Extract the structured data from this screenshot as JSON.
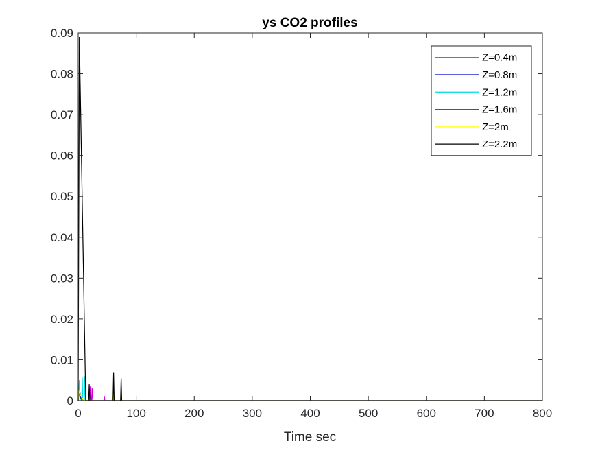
{
  "chart_data": {
    "type": "line",
    "title": "ys CO2 profiles",
    "xlabel": "Time sec",
    "ylabel": "",
    "xlim": [
      0,
      800
    ],
    "ylim": [
      0,
      0.09
    ],
    "xticks": [
      0,
      100,
      200,
      300,
      400,
      500,
      600,
      700,
      800
    ],
    "xtick_labels": [
      "0",
      "100",
      "200",
      "300",
      "400",
      "500",
      "600",
      "700",
      "800"
    ],
    "yticks": [
      0,
      0.01,
      0.02,
      0.03,
      0.04,
      0.05,
      0.06,
      0.07,
      0.08,
      0.09
    ],
    "ytick_labels": [
      "0",
      "0.01",
      "0.02",
      "0.03",
      "0.04",
      "0.05",
      "0.06",
      "0.07",
      "0.08",
      "0.09"
    ],
    "grid": false,
    "legend_position": "top-right",
    "series": [
      {
        "name": "Z=0.4m",
        "color": "#00cc00",
        "points": [
          [
            0,
            0
          ],
          [
            1,
            0.0015
          ],
          [
            2,
            0.002
          ],
          [
            3,
            0.001
          ],
          [
            4,
            0.0005
          ],
          [
            6,
            0
          ],
          [
            800,
            0
          ]
        ]
      },
      {
        "name": "Z=0.8m",
        "color": "#0000cc",
        "points": [
          [
            0,
            0
          ],
          [
            2,
            0.003
          ],
          [
            4,
            0.001
          ],
          [
            6,
            0
          ],
          [
            20,
            0
          ],
          [
            21,
            0.0025
          ],
          [
            22,
            0
          ],
          [
            800,
            0
          ]
        ]
      },
      {
        "name": "Z=1.2m",
        "color": "#00dddd",
        "points": [
          [
            0,
            0
          ],
          [
            2,
            0.005
          ],
          [
            3,
            0
          ],
          [
            6,
            0
          ],
          [
            7,
            0.0058
          ],
          [
            8,
            0
          ],
          [
            10,
            0
          ],
          [
            11,
            0.006
          ],
          [
            12,
            0
          ],
          [
            800,
            0
          ]
        ]
      },
      {
        "name": "Z=1.6m",
        "color": "#cc00cc",
        "points": [
          [
            0,
            0
          ],
          [
            20,
            0
          ],
          [
            21,
            0.0035
          ],
          [
            22,
            0
          ],
          [
            23,
            0
          ],
          [
            24,
            0.003
          ],
          [
            25,
            0
          ],
          [
            44,
            0
          ],
          [
            45,
            0.001
          ],
          [
            46,
            0
          ],
          [
            800,
            0
          ]
        ]
      },
      {
        "name": "Z=2m",
        "color": "#ffff00",
        "points": [
          [
            0,
            0
          ],
          [
            1,
            0.0025
          ],
          [
            3,
            0.0015
          ],
          [
            5,
            0.001
          ],
          [
            8,
            0.0005
          ],
          [
            12,
            0
          ],
          [
            58,
            0
          ],
          [
            59,
            0.001
          ],
          [
            60,
            0
          ],
          [
            800,
            0
          ]
        ]
      },
      {
        "name": "Z=2.2m",
        "color": "#000000",
        "points": [
          [
            0,
            0
          ],
          [
            2,
            0.089
          ],
          [
            13,
            0
          ],
          [
            18,
            0
          ],
          [
            19,
            0.004
          ],
          [
            20,
            0
          ],
          [
            60,
            0
          ],
          [
            61,
            0.0068
          ],
          [
            62,
            0
          ],
          [
            73,
            0
          ],
          [
            74,
            0.0055
          ],
          [
            75,
            0
          ],
          [
            800,
            0
          ]
        ]
      }
    ]
  }
}
